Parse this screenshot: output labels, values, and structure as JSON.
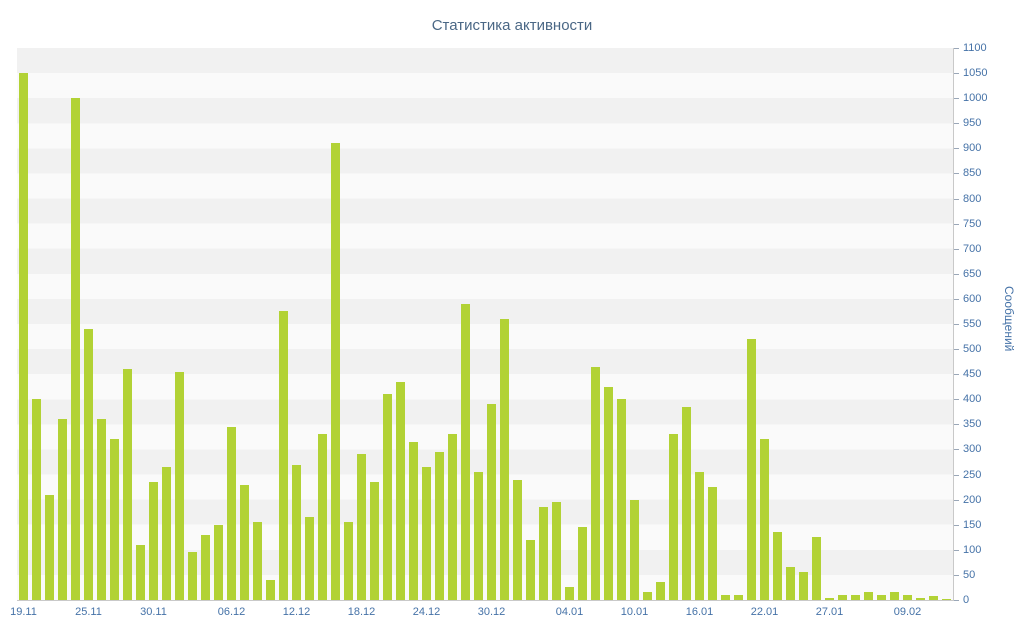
{
  "chart_data": {
    "type": "bar",
    "title": "Статистика активности",
    "ylabel": "Сообщений",
    "xlabel": "",
    "ylim": [
      0,
      1100
    ],
    "y_tick_step": 50,
    "grid": "horizontal-bands",
    "legend": "none",
    "bar_color": "#b2d235",
    "values": [
      1050,
      400,
      210,
      360,
      1000,
      540,
      360,
      320,
      460,
      110,
      235,
      265,
      455,
      95,
      130,
      150,
      345,
      230,
      155,
      40,
      575,
      270,
      165,
      330,
      910,
      155,
      290,
      235,
      410,
      435,
      315,
      265,
      295,
      330,
      590,
      255,
      390,
      560,
      240,
      120,
      185,
      195,
      25,
      145,
      465,
      425,
      400,
      200,
      15,
      35,
      330,
      385,
      255,
      225,
      10,
      10,
      520,
      320,
      135,
      65,
      55,
      125,
      5,
      10,
      10,
      15,
      10,
      15,
      10,
      5,
      8,
      3
    ],
    "x_ticks": [
      {
        "label": "19.11",
        "index": 0
      },
      {
        "label": "25.11",
        "index": 5
      },
      {
        "label": "30.11",
        "index": 10
      },
      {
        "label": "06.12",
        "index": 16
      },
      {
        "label": "12.12",
        "index": 21
      },
      {
        "label": "18.12",
        "index": 26
      },
      {
        "label": "24.12",
        "index": 31
      },
      {
        "label": "30.12",
        "index": 36
      },
      {
        "label": "04.01",
        "index": 42
      },
      {
        "label": "10.01",
        "index": 47
      },
      {
        "label": "16.01",
        "index": 52
      },
      {
        "label": "22.01",
        "index": 57
      },
      {
        "label": "27.01",
        "index": 62
      },
      {
        "label": "09.02",
        "index": 68
      }
    ]
  },
  "colors": {
    "title_text": "#4a6785",
    "axis_label_text": "#4572a7",
    "band_dark": "#f1f1f1",
    "band_light": "#fafafa",
    "axis_line": "#c9c9c9"
  }
}
